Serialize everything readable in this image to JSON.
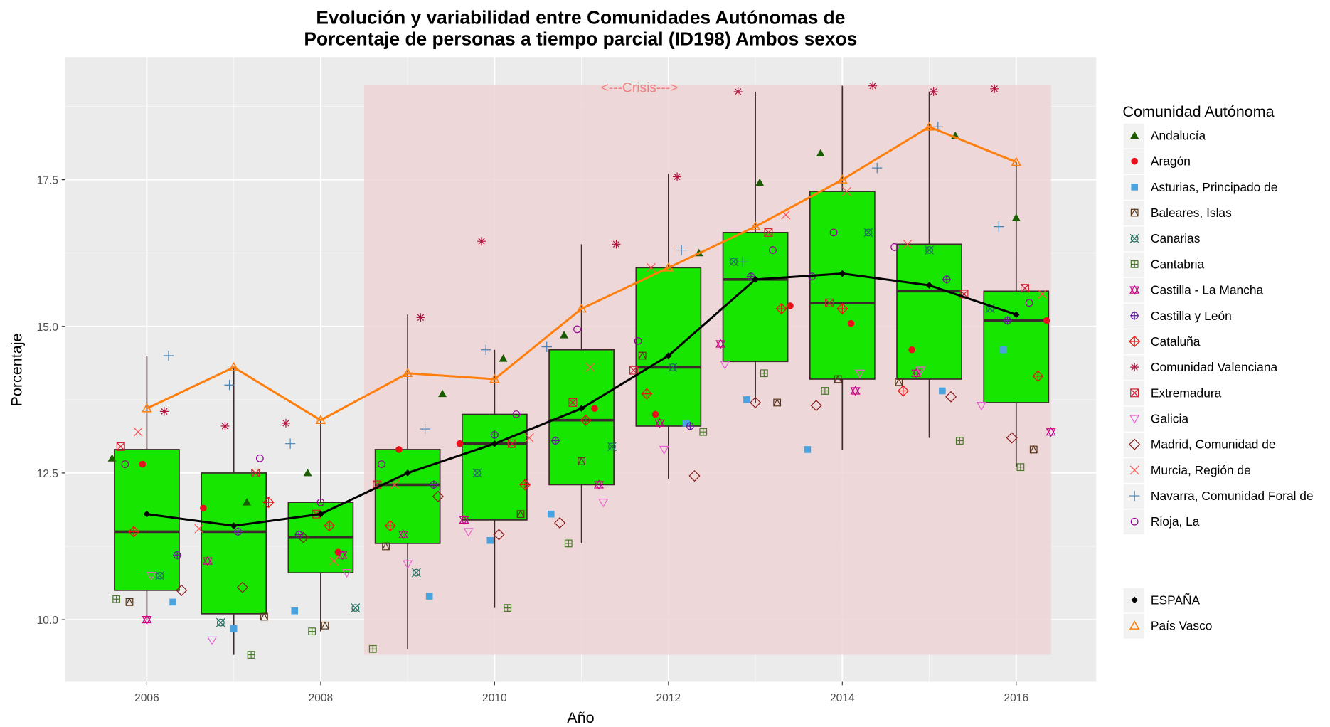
{
  "chart_data": {
    "type": "boxplot+scatter+line",
    "title_line1": "Evolución y variabilidad entre Comunidades Autónomas de",
    "title_line2": "Porcentaje de personas a tiempo parcial (ID198) Ambos sexos",
    "xlabel": "Año",
    "ylabel": "Porcentaje",
    "xlim": [
      2005.06,
      2016.92
    ],
    "ylim": [
      8.94,
      19.59
    ],
    "x_ticks": [
      2006,
      2008,
      2010,
      2012,
      2014,
      2016
    ],
    "x_tick_labels": [
      "2006",
      "2008",
      "2010",
      "2012",
      "2014",
      "2016"
    ],
    "y_ticks": [
      10.0,
      12.5,
      15.0,
      17.5
    ],
    "y_tick_labels": [
      "10.0",
      "12.5",
      "15.0",
      "17.5"
    ],
    "grid": true,
    "annotation": {
      "text": "<---Crisis--->",
      "x_range": [
        2008.5,
        2016.4
      ],
      "y_range": [
        9.4,
        19.11
      ],
      "color": "#f08080",
      "fill": "#eed3d5"
    },
    "years": [
      2006,
      2007,
      2008,
      2009,
      2010,
      2011,
      2012,
      2013,
      2014,
      2015,
      2016
    ],
    "boxes": {
      "fill": "#17e600",
      "border": "#3b2a2a",
      "stats": [
        [
          10.0,
          10.5,
          11.5,
          12.9,
          14.5
        ],
        [
          9.4,
          10.1,
          11.5,
          12.5,
          14.3
        ],
        [
          9.8,
          10.8,
          11.4,
          12.0,
          13.4
        ],
        [
          9.5,
          11.3,
          12.3,
          12.9,
          15.2
        ],
        [
          10.2,
          11.7,
          13.0,
          13.5,
          14.6
        ],
        [
          11.3,
          12.3,
          13.4,
          14.6,
          16.4
        ],
        [
          12.4,
          13.3,
          14.3,
          16.0,
          17.6
        ],
        [
          13.7,
          14.4,
          15.8,
          16.6,
          19.0
        ],
        [
          12.9,
          14.1,
          15.4,
          17.3,
          19.1
        ],
        [
          13.1,
          14.1,
          15.6,
          16.4,
          19.0
        ],
        [
          12.6,
          13.7,
          15.1,
          15.6,
          17.8
        ]
      ]
    },
    "legend_title": "Comunidad Autónoma",
    "legend_position": "right",
    "series": [
      {
        "name": "Andalucía",
        "shape": "triangle-filled",
        "color": "#1a5c00",
        "values": [
          12.75,
          12.0,
          12.5,
          13.85,
          14.45,
          14.85,
          16.25,
          17.45,
          17.95,
          18.25,
          16.85
        ]
      },
      {
        "name": "Aragón",
        "shape": "circle-filled",
        "color": "#e8101a",
        "values": [
          12.65,
          11.9,
          11.15,
          12.9,
          13.0,
          13.6,
          13.5,
          15.35,
          15.05,
          14.6,
          15.1
        ]
      },
      {
        "name": "Asturias, Principado de",
        "shape": "square-filled",
        "color": "#4aa3df",
        "values": [
          10.3,
          9.85,
          10.15,
          10.4,
          11.35,
          11.8,
          13.35,
          13.75,
          12.9,
          13.9,
          14.6
        ]
      },
      {
        "name": "Baleares, Islas",
        "shape": "square-slash",
        "color": "#5a3618",
        "values": [
          10.3,
          10.05,
          9.9,
          11.25,
          11.8,
          12.7,
          14.5,
          13.7,
          14.1,
          14.05,
          12.9
        ]
      },
      {
        "name": "Canarias",
        "shape": "circle-x",
        "color": "#1f6e5e",
        "values": [
          10.75,
          9.95,
          10.2,
          10.8,
          12.5,
          12.95,
          14.3,
          16.1,
          16.6,
          16.3,
          15.3
        ]
      },
      {
        "name": "Cantabria",
        "shape": "square-plus",
        "color": "#4a7a2a",
        "values": [
          10.35,
          9.4,
          9.8,
          9.5,
          10.2,
          11.3,
          13.2,
          14.2,
          13.9,
          13.05,
          12.6
        ]
      },
      {
        "name": "Castilla - La Mancha",
        "shape": "star-david",
        "color": "#cc0088",
        "values": [
          10.0,
          11.0,
          11.1,
          11.45,
          11.7,
          12.3,
          13.35,
          14.7,
          13.9,
          14.2,
          13.2
        ]
      },
      {
        "name": "Castilla y León",
        "shape": "circle-plus",
        "color": "#6a1aa0",
        "values": [
          11.1,
          11.5,
          11.45,
          12.3,
          13.15,
          13.05,
          13.3,
          15.85,
          15.85,
          15.8,
          15.1
        ]
      },
      {
        "name": "Cataluña",
        "shape": "diamond-plus",
        "color": "#ee1111",
        "values": [
          11.5,
          12.0,
          11.6,
          11.6,
          12.3,
          13.4,
          13.85,
          15.3,
          15.3,
          13.9,
          14.15
        ]
      },
      {
        "name": "Comunidad Valenciana",
        "shape": "asterisk",
        "color": "#b0103a",
        "values": [
          13.55,
          13.3,
          13.35,
          15.15,
          16.45,
          16.4,
          17.55,
          19.0,
          19.1,
          19.0,
          19.05
        ]
      },
      {
        "name": "Extremadura",
        "shape": "square-x",
        "color": "#d02030",
        "values": [
          12.95,
          12.5,
          11.8,
          12.3,
          13.0,
          13.7,
          14.25,
          16.6,
          15.4,
          15.55,
          15.65
        ]
      },
      {
        "name": "Galicia",
        "shape": "triangle-down",
        "color": "#e860d0",
        "values": [
          10.75,
          9.65,
          10.8,
          10.95,
          11.5,
          12.0,
          12.9,
          14.35,
          14.2,
          14.25,
          13.65
        ]
      },
      {
        "name": "Madrid, Comunidad de",
        "shape": "diamond",
        "color": "#8b1a1a",
        "values": [
          10.5,
          10.55,
          11.4,
          12.1,
          11.45,
          11.65,
          12.45,
          13.7,
          13.65,
          13.8,
          13.1
        ]
      },
      {
        "name": "Murcia, Región de",
        "shape": "x",
        "color": "#ff5050",
        "values": [
          13.2,
          11.55,
          11.0,
          12.3,
          13.1,
          14.3,
          16.0,
          16.9,
          17.3,
          16.4,
          15.55
        ]
      },
      {
        "name": "Navarra, Comunidad Foral de",
        "shape": "plus",
        "color": "#4682b4",
        "values": [
          14.5,
          14.0,
          13.0,
          13.25,
          14.6,
          14.65,
          16.3,
          16.1,
          17.7,
          18.4,
          16.7
        ]
      },
      {
        "name": "Rioja, La",
        "shape": "circle",
        "color": "#990099",
        "values": [
          12.65,
          12.75,
          12.0,
          12.65,
          13.5,
          14.95,
          14.75,
          16.3,
          16.6,
          16.35,
          15.4
        ]
      }
    ],
    "lines": [
      {
        "name": "ESPAÑA",
        "shape": "diamond-filled",
        "color": "#000000",
        "values": [
          11.8,
          11.6,
          11.8,
          12.5,
          13.0,
          13.6,
          14.5,
          15.8,
          15.9,
          15.7,
          15.2
        ]
      },
      {
        "name": "País Vasco",
        "shape": "triangle",
        "color": "#ff7f0e",
        "values": [
          13.6,
          14.3,
          13.4,
          14.2,
          14.1,
          15.3,
          16.0,
          16.7,
          17.5,
          18.4,
          17.8
        ]
      }
    ]
  }
}
